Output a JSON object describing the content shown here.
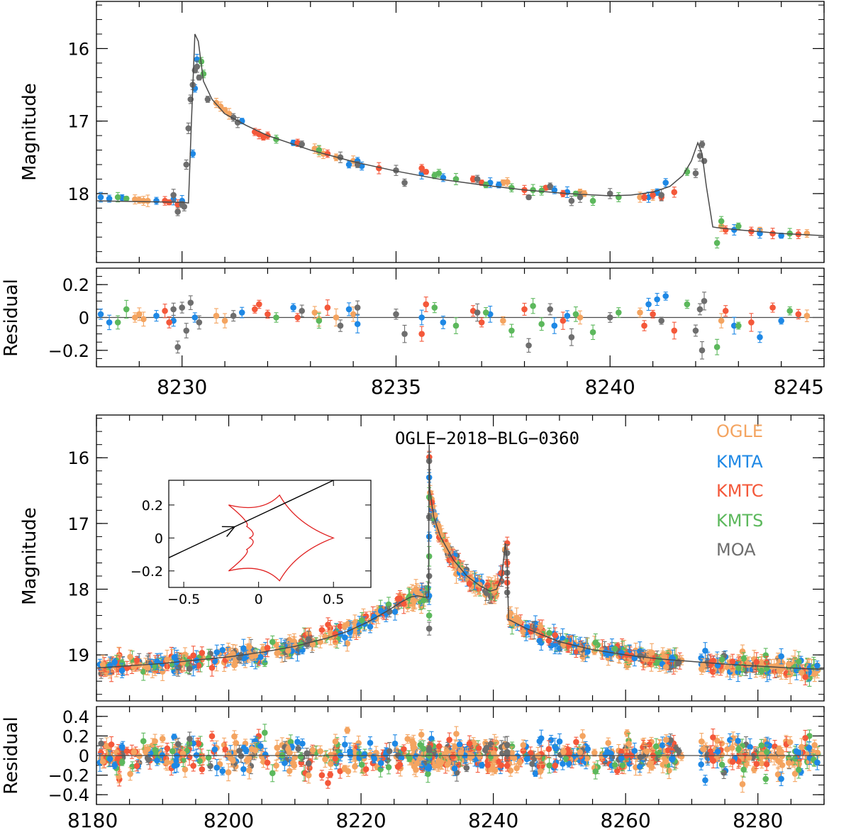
{
  "colors": {
    "OGLE": "#f4a460",
    "KMTA": "#1e88e5",
    "KMTC": "#f4583a",
    "KMTS": "#5cb85c",
    "MOA": "#6e6e6e",
    "model": "#4a4a4a",
    "caustic": "#e02020"
  },
  "chart_data": [
    {
      "type": "scatter",
      "panel": "top-light-curve",
      "ylabel": "Magnitude",
      "xlim": [
        8228,
        8245
      ],
      "ylim": [
        18.95,
        15.35
      ],
      "yticks": [
        16,
        17,
        18
      ],
      "model": {
        "x": [
          8228,
          8230.0,
          8230.15,
          8230.22,
          8230.3,
          8230.38,
          8230.5,
          8230.7,
          8231,
          8231.5,
          8232,
          8233,
          8234,
          8235,
          8236,
          8237,
          8238,
          8239,
          8240,
          8240.5,
          8241,
          8241.4,
          8241.7,
          8241.9,
          8242.05,
          8242.15,
          8242.25,
          8242.4,
          8242.5,
          8243,
          8244,
          8245
        ],
        "y": [
          18.1,
          18.12,
          18.13,
          17.0,
          15.8,
          15.9,
          16.45,
          16.7,
          16.9,
          17.06,
          17.2,
          17.4,
          17.56,
          17.69,
          17.8,
          17.88,
          17.95,
          18.0,
          18.03,
          18.02,
          17.98,
          17.9,
          17.75,
          17.55,
          17.3,
          17.45,
          17.9,
          18.46,
          18.47,
          18.5,
          18.55,
          18.58
        ]
      },
      "series": [
        {
          "name": "OGLE",
          "x": [
            8228.9,
            8229.0,
            8229.1,
            8229.2,
            8230.8,
            8230.9,
            8231.0,
            8231.1,
            8233.1,
            8233.2,
            8233.3,
            8233.6,
            8234.0,
            8237.5,
            8237.6,
            8239.3,
            8239.4,
            8240.7,
            8241.0,
            8242.6,
            8243.5,
            8244.6
          ],
          "y": [
            18.08,
            18.09,
            18.1,
            18.1,
            16.75,
            16.8,
            16.85,
            16.9,
            17.38,
            17.42,
            17.45,
            17.5,
            17.55,
            17.85,
            17.84,
            17.98,
            18.0,
            18.05,
            18.02,
            18.45,
            18.5,
            18.55
          ]
        },
        {
          "name": "KMTA",
          "x": [
            8228.1,
            8228.3,
            8228.6,
            8229.4,
            8229.8,
            8230.0,
            8230.25,
            8230.3,
            8230.35,
            8231.4,
            8232.6,
            8233.9,
            8234.1,
            8234.2,
            8235.6,
            8236.1,
            8237.2,
            8237.4,
            8238.7,
            8239.0,
            8240.9,
            8241.1,
            8241.3,
            8242.9,
            8243.5,
            8244.0
          ],
          "y": [
            18.05,
            18.07,
            18.06,
            18.1,
            18.08,
            18.1,
            17.45,
            16.55,
            16.15,
            17.0,
            17.3,
            17.6,
            17.55,
            17.62,
            17.72,
            17.78,
            17.85,
            17.88,
            17.95,
            17.98,
            18.05,
            17.98,
            17.85,
            18.5,
            18.55,
            18.58
          ]
        },
        {
          "name": "KMTC",
          "x": [
            8229.6,
            8229.7,
            8229.9,
            8231.7,
            8231.8,
            8231.9,
            8232.0,
            8232.7,
            8233.4,
            8234.6,
            8235.6,
            8235.7,
            8236.8,
            8237.0,
            8238.0,
            8238.5,
            8238.9,
            8240.8,
            8241.0,
            8241.2,
            8241.5,
            8242.7,
            8243.3,
            8243.8,
            8244.4
          ],
          "y": [
            18.1,
            18.12,
            18.15,
            17.15,
            17.18,
            17.22,
            17.2,
            17.3,
            17.45,
            17.65,
            17.65,
            17.7,
            17.8,
            17.85,
            17.95,
            17.92,
            18.0,
            18.05,
            18.02,
            18.05,
            17.98,
            18.5,
            18.52,
            18.55,
            18.56
          ]
        },
        {
          "name": "KMTS",
          "x": [
            8228.5,
            8228.7,
            8230.45,
            8230.5,
            8232.2,
            8233.2,
            8235.9,
            8236.0,
            8236.4,
            8237.1,
            8237.7,
            8238.2,
            8238.4,
            8239.2,
            8239.6,
            8240.2,
            8241.8,
            8242.5,
            8242.6,
            8243.0,
            8244.2
          ],
          "y": [
            18.05,
            18.07,
            16.18,
            16.35,
            17.25,
            17.4,
            17.75,
            17.72,
            17.8,
            17.88,
            17.92,
            17.95,
            17.96,
            18.0,
            18.1,
            18.05,
            17.7,
            18.68,
            18.38,
            18.45,
            18.55
          ]
        },
        {
          "name": "MOA",
          "x": [
            8229.8,
            8229.9,
            8230.0,
            8230.05,
            8230.1,
            8230.15,
            8230.2,
            8230.25,
            8230.3,
            8230.35,
            8230.4,
            8230.6,
            8231.2,
            8231.3,
            8232.8,
            8233.7,
            8234.1,
            8235.0,
            8235.2,
            8236.9,
            8238.1,
            8238.6,
            8239.1,
            8239.3,
            8240.0,
            8241.2,
            8242.0,
            8242.1,
            8242.15,
            8242.2
          ],
          "y": [
            18.02,
            18.25,
            18.15,
            18.18,
            17.6,
            17.1,
            16.7,
            16.5,
            16.3,
            16.25,
            16.4,
            16.7,
            16.95,
            17.02,
            17.32,
            17.5,
            17.6,
            17.68,
            17.85,
            17.8,
            18.05,
            17.9,
            18.1,
            18.05,
            18.0,
            18.02,
            17.72,
            17.48,
            17.32,
            17.55
          ]
        }
      ]
    },
    {
      "type": "scatter",
      "panel": "top-residual",
      "ylabel": "Residual",
      "xlim": [
        8228,
        8245
      ],
      "ylim": [
        -0.3,
        0.3
      ],
      "yticks": [
        -0.2,
        0,
        0.2
      ],
      "ytick_labels": [
        "−0.2",
        "0",
        "0.2"
      ],
      "xticks": [
        8230,
        8235,
        8240,
        8245
      ],
      "xtick_labels": [
        "8230",
        "8235",
        "8240",
        "8245"
      ],
      "series": [
        {
          "name": "OGLE",
          "x": [
            8228.9,
            8229.0,
            8229.1,
            8230.8,
            8231.0,
            8233.1,
            8233.2,
            8233.6,
            8234.0,
            8237.5,
            8239.3,
            8240.7,
            8242.6,
            8244.6
          ],
          "y": [
            0.0,
            0.02,
            -0.01,
            0.01,
            -0.02,
            0.03,
            -0.01,
            0.0,
            0.02,
            -0.02,
            0.0,
            0.03,
            -0.02,
            0.01
          ]
        },
        {
          "name": "KMTA",
          "x": [
            8228.1,
            8228.3,
            8229.4,
            8229.8,
            8230.3,
            8231.4,
            8232.6,
            8233.9,
            8234.1,
            8235.6,
            8236.1,
            8237.2,
            8238.7,
            8239.0,
            8240.9,
            8241.1,
            8241.3,
            8242.9,
            8243.5,
            8244.0
          ],
          "y": [
            0.02,
            -0.03,
            0.01,
            -0.02,
            0.0,
            0.03,
            0.06,
            0.05,
            -0.04,
            0.0,
            -0.03,
            0.02,
            -0.05,
            0.01,
            0.08,
            0.11,
            0.13,
            -0.05,
            -0.12,
            -0.02
          ]
        },
        {
          "name": "KMTC",
          "x": [
            8229.6,
            8229.7,
            8231.7,
            8231.8,
            8232.0,
            8232.7,
            8233.4,
            8235.6,
            8235.7,
            8236.8,
            8237.0,
            8238.0,
            8238.9,
            8240.8,
            8241.0,
            8241.5,
            8242.7,
            8243.3,
            8243.8,
            8244.4
          ],
          "y": [
            0.04,
            -0.03,
            0.05,
            0.08,
            0.02,
            0.0,
            0.06,
            -0.1,
            0.08,
            0.04,
            -0.03,
            0.05,
            -0.02,
            -0.05,
            0.02,
            -0.08,
            0.04,
            -0.03,
            0.06,
            0.02
          ]
        },
        {
          "name": "KMTS",
          "x": [
            8228.5,
            8228.7,
            8232.2,
            8233.2,
            8235.9,
            8236.4,
            8237.1,
            8237.7,
            8238.2,
            8238.4,
            8239.2,
            8239.6,
            8240.2,
            8241.8,
            8242.5,
            8243.0,
            8244.2
          ],
          "y": [
            -0.03,
            0.05,
            0.0,
            -0.02,
            0.06,
            -0.05,
            0.03,
            -0.08,
            0.07,
            -0.04,
            0.02,
            -0.09,
            0.03,
            0.08,
            -0.18,
            -0.05,
            0.04
          ]
        },
        {
          "name": "MOA",
          "x": [
            8229.8,
            8229.9,
            8230.0,
            8230.1,
            8230.2,
            8230.4,
            8231.2,
            8232.8,
            8233.7,
            8234.1,
            8235.0,
            8235.2,
            8236.9,
            8238.1,
            8238.6,
            8239.1,
            8240.0,
            8241.2,
            8242.0,
            8242.1,
            8242.15,
            8242.2
          ],
          "y": [
            0.05,
            -0.18,
            0.06,
            -0.08,
            0.09,
            -0.03,
            0.01,
            0.04,
            -0.05,
            0.06,
            0.02,
            -0.1,
            0.03,
            -0.17,
            0.05,
            -0.12,
            0.0,
            -0.02,
            -0.08,
            0.05,
            -0.2,
            0.1
          ]
        }
      ]
    },
    {
      "type": "scatter",
      "panel": "bottom-light-curve",
      "title": "OGLE−2018−BLG−0360",
      "ylabel": "Magnitude",
      "xlim": [
        8180,
        8290
      ],
      "ylim": [
        19.7,
        15.35
      ],
      "yticks": [
        16,
        17,
        18,
        19
      ],
      "legend": [
        "OGLE",
        "KMTA",
        "KMTC",
        "KMTS",
        "MOA"
      ],
      "legend_position": "top-right",
      "model": {
        "x": [
          8180,
          8190,
          8200,
          8205,
          8210,
          8215,
          8218,
          8221,
          8224,
          8226,
          8227.5,
          8228.5,
          8229.5,
          8230.2,
          8230.3,
          8230.4,
          8231,
          8232,
          8234,
          8236,
          8238,
          8239.5,
          8240.5,
          8241.3,
          8241.8,
          8242.1,
          8242.3,
          8242.5,
          8245,
          8250,
          8255,
          8260,
          8265,
          8270,
          8275,
          8280,
          8285,
          8290
        ],
        "y": [
          19.2,
          19.13,
          19.03,
          18.96,
          18.87,
          18.74,
          18.64,
          18.5,
          18.33,
          18.2,
          18.12,
          18.1,
          18.12,
          18.12,
          15.8,
          16.5,
          16.9,
          17.2,
          17.56,
          17.8,
          17.95,
          18.03,
          18.0,
          17.8,
          17.3,
          17.6,
          18.47,
          18.47,
          18.6,
          18.8,
          18.92,
          19.0,
          19.06,
          19.1,
          19.14,
          19.17,
          19.2,
          19.22
        ]
      }
    },
    {
      "type": "scatter",
      "panel": "bottom-residual",
      "ylabel": "Residual",
      "xlim": [
        8180,
        8290
      ],
      "ylim": [
        -0.5,
        0.5
      ],
      "yticks": [
        -0.4,
        -0.2,
        0,
        0.2,
        0.4
      ],
      "ytick_labels": [
        "−0.4",
        "−0.2",
        "0",
        "0.2",
        "0.4"
      ],
      "xticks": [
        8180,
        8200,
        8220,
        8240,
        8260,
        8280
      ],
      "xtick_labels": [
        "8180",
        "8200",
        "8220",
        "8240",
        "8260",
        "8280"
      ]
    },
    {
      "type": "line",
      "panel": "inset-caustic",
      "xlim": [
        -0.6,
        0.75
      ],
      "ylim": [
        -0.3,
        0.35
      ],
      "xticks": [
        -0.5,
        0,
        0.5
      ],
      "xtick_labels": [
        "−0.5",
        "0",
        "0.5"
      ],
      "yticks": [
        -0.2,
        0,
        0.2
      ],
      "ytick_labels": [
        "−0.2",
        "0",
        "0.2"
      ],
      "caustic_cusps": [
        [
          0.5,
          0.0
        ],
        [
          0.14,
          0.26
        ],
        [
          -0.2,
          0.2
        ],
        [
          -0.08,
          0.07
        ],
        [
          -0.06,
          0.0
        ],
        [
          -0.08,
          -0.07
        ],
        [
          -0.2,
          -0.2
        ],
        [
          0.14,
          -0.26
        ]
      ],
      "source_trajectory": {
        "start": [
          -0.6,
          -0.12
        ],
        "end": [
          0.5,
          0.35
        ]
      }
    }
  ]
}
